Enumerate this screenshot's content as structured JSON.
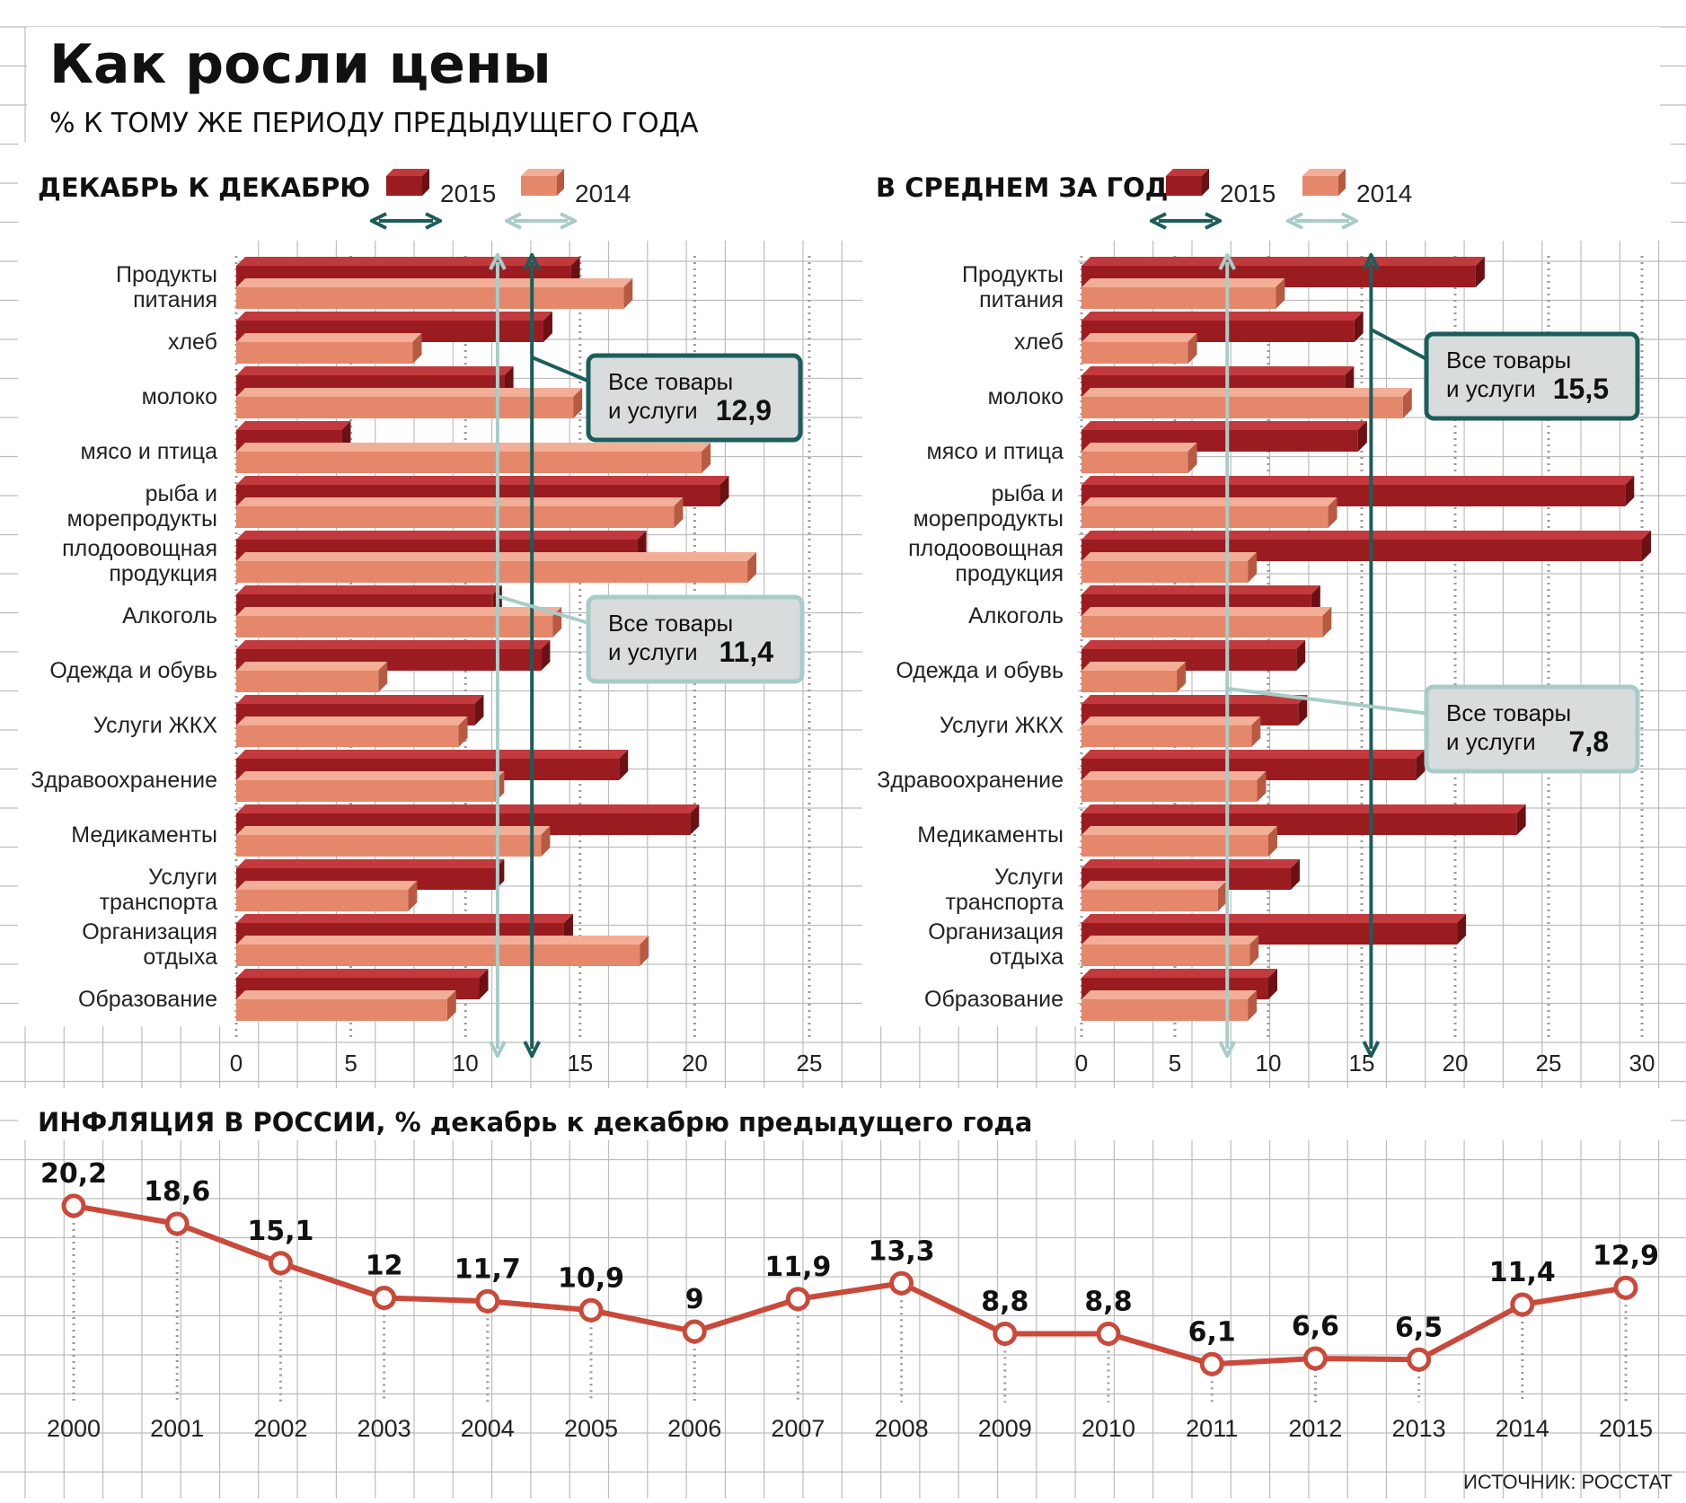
{
  "header": {
    "title": "Как росли цены",
    "subtitle": "% К ТОМУ ЖЕ ПЕРИОДУ ПРЕДЫДУЩЕГО ГОДА"
  },
  "legend": {
    "label_2015": "2015",
    "label_2014": "2014"
  },
  "colors": {
    "dark": "#9b1c20",
    "dark_side": "#6b1013",
    "dark_top": "#c23a3d",
    "light": "#e4876b",
    "light_side": "#b65a42",
    "light_top": "#f2ae96",
    "teal": "#1c5d5a",
    "teal_light": "#a8ccc8",
    "grid": "#bdbdbd",
    "callout_bg": "#d8dcdd",
    "line": "#c94a3a"
  },
  "chart_data": [
    {
      "type": "bar",
      "title": "ДЕКАБРЬ К ДЕКАБРЮ",
      "categories": [
        [
          "Продукты",
          "питания"
        ],
        [
          "хлеб"
        ],
        [
          "молоко"
        ],
        [
          "мясо и птица"
        ],
        [
          "рыба и",
          "морепродукты"
        ],
        [
          "плодоовощная",
          "продукция"
        ],
        [
          "Алкоголь"
        ],
        [
          "Одежда и обувь"
        ],
        [
          "Услуги ЖКХ"
        ],
        [
          "Здравоохранение"
        ],
        [
          "Медикаменты"
        ],
        [
          "Услуги",
          "транспорта"
        ],
        [
          "Организация",
          "отдыха"
        ],
        [
          "Образование"
        ]
      ],
      "series": [
        {
          "name": "2015",
          "values": [
            14.6,
            13.4,
            11.7,
            4.6,
            21.1,
            17.5,
            11.2,
            13.3,
            10.4,
            16.7,
            19.8,
            11.3,
            14.3,
            10.6
          ]
        },
        {
          "name": "2014",
          "values": [
            16.9,
            7.7,
            14.7,
            20.3,
            19.1,
            22.3,
            13.8,
            6.2,
            9.7,
            11.3,
            13.3,
            7.5,
            17.6,
            9.2
          ]
        }
      ],
      "xlim": [
        0,
        25
      ],
      "xticks": [
        0,
        5,
        10,
        15,
        20,
        25
      ],
      "callouts": [
        {
          "label": [
            "Все товары",
            "и услуги"
          ],
          "value": "12,9",
          "x": 12.9,
          "series": "2015"
        },
        {
          "label": [
            "Все товары",
            "и услуги"
          ],
          "value": "11,4",
          "x": 11.4,
          "series": "2014"
        }
      ]
    },
    {
      "type": "bar",
      "title": "В СРЕДНЕМ ЗА ГОД",
      "categories": [
        [
          "Продукты",
          "питания"
        ],
        [
          "хлеб"
        ],
        [
          "молоко"
        ],
        [
          "мясо и птица"
        ],
        [
          "рыба и",
          "морепродукты"
        ],
        [
          "плодоовощная",
          "продукция"
        ],
        [
          "Алкоголь"
        ],
        [
          "Одежда и обувь"
        ],
        [
          "Услуги ЖКХ"
        ],
        [
          "Здравоохранение"
        ],
        [
          "Медикаменты"
        ],
        [
          "Услуги",
          "транспорта"
        ],
        [
          "Организация",
          "отдыха"
        ],
        [
          "Образование"
        ]
      ],
      "series": [
        {
          "name": "2015",
          "values": [
            21.1,
            14.6,
            14.1,
            14.8,
            29.1,
            30.0,
            12.3,
            11.5,
            11.6,
            17.9,
            23.3,
            11.2,
            20.1,
            10.0
          ]
        },
        {
          "name": "2014",
          "values": [
            10.4,
            5.7,
            17.2,
            5.7,
            13.2,
            8.9,
            12.9,
            5.1,
            9.1,
            9.4,
            10.0,
            7.3,
            9.0,
            8.9
          ]
        }
      ],
      "xlim": [
        0,
        30
      ],
      "xticks": [
        0,
        5,
        10,
        15,
        20,
        25,
        30
      ],
      "callouts": [
        {
          "label": [
            "Все товары",
            "и услуги"
          ],
          "value": "15,5",
          "x": 15.5,
          "series": "2015"
        },
        {
          "label": [
            "Все товары",
            "и услуги"
          ],
          "value": "7,8",
          "x": 7.8,
          "series": "2014"
        }
      ]
    },
    {
      "type": "line",
      "title": "ИНФЛЯЦИЯ В РОССИИ, % декабрь к декабрю предыдущего года",
      "x": [
        "2000",
        "2001",
        "2002",
        "2003",
        "2004",
        "2005",
        "2006",
        "2007",
        "2008",
        "2009",
        "2010",
        "2011",
        "2012",
        "2013",
        "2014",
        "2015"
      ],
      "values": [
        20.2,
        18.6,
        15.1,
        12.0,
        11.7,
        10.9,
        9.0,
        11.9,
        13.3,
        8.8,
        8.8,
        6.1,
        6.6,
        6.5,
        11.4,
        12.9
      ],
      "labels": [
        "20,2",
        "18,6",
        "15,1",
        "12",
        "11,7",
        "10,9",
        "9",
        "11,9",
        "13,3",
        "8,8",
        "8,8",
        "6,1",
        "6,6",
        "6,5",
        "11,4",
        "12,9"
      ],
      "ylim": [
        0,
        25
      ]
    }
  ],
  "footer": {
    "source": "ИСТОЧНИК: РОССТАТ"
  }
}
